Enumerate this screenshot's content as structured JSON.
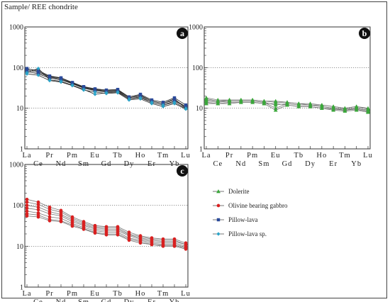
{
  "figure": {
    "ylabel": "Sample/ REE chondrite"
  },
  "colors": {
    "Dolerite": "#3aa83a",
    "Olivine bearing gabbro": "#d92020",
    "Pillow-lava": "#2a4a9a",
    "Pillow-lava sp.": "#2aa3c8"
  },
  "legend": [
    {
      "name": "Dolerite",
      "marker": "triangle"
    },
    {
      "name": "Olivine bearing gabbro",
      "marker": "circle"
    },
    {
      "name": "Pillow-lava",
      "marker": "square"
    },
    {
      "name": "Pillow-lava sp.",
      "marker": "diamond"
    }
  ],
  "chart_data": [
    {
      "type": "line",
      "panel_label": "a",
      "yscale": "log",
      "ylim": [
        1,
        1000
      ],
      "yticks": [
        "1000",
        "100",
        "10",
        "1"
      ],
      "x_upper": [
        "La",
        "Pr",
        "Pm",
        "Eu",
        "Tb",
        "Ho",
        "Tm",
        "Lu"
      ],
      "x_lower": [
        "Ce",
        "Nd",
        "Sm",
        "Gd",
        "Dy",
        "Er",
        "Yb"
      ],
      "categories": [
        "La",
        "Ce",
        "Pr",
        "Nd",
        "Pm",
        "Sm",
        "Eu",
        "Gd",
        "Tb",
        "Dy",
        "Ho",
        "Er",
        "Tm",
        "Yb",
        "Lu"
      ],
      "series": [
        {
          "name": "Pillow-lava",
          "values": [
            95,
            80,
            60,
            55,
            42,
            33,
            29,
            27,
            28,
            18,
            21,
            15,
            13,
            17,
            10
          ]
        },
        {
          "name": "Pillow-lava",
          "values": [
            88,
            75,
            58,
            52,
            41,
            32,
            28,
            26,
            27,
            18,
            20,
            15,
            13,
            16,
            11
          ]
        },
        {
          "name": "Pillow-lava",
          "values": [
            80,
            70,
            55,
            50,
            40,
            31,
            27,
            25,
            26,
            17,
            19,
            14,
            12,
            15,
            11
          ]
        },
        {
          "name": "Pillow-lava",
          "values": [
            92,
            85,
            62,
            56,
            43,
            34,
            30,
            28,
            29,
            19,
            22,
            16,
            14,
            18,
            12
          ]
        },
        {
          "name": "Pillow-lava sp.",
          "values": [
            75,
            95,
            50,
            46,
            37,
            29,
            22,
            24,
            25,
            17,
            18,
            14,
            12,
            14,
            10
          ]
        },
        {
          "name": "Pillow-lava sp.",
          "values": [
            70,
            65,
            48,
            44,
            36,
            28,
            25,
            23,
            24,
            16,
            17,
            13,
            11,
            13,
            9.5
          ]
        }
      ]
    },
    {
      "type": "line",
      "panel_label": "b",
      "yscale": "log",
      "ylim": [
        1,
        1000
      ],
      "yticks": [
        "1000",
        "100",
        "10",
        "1"
      ],
      "x_upper": [
        "La",
        "Pr",
        "Pm",
        "Eu",
        "Tb",
        "Ho",
        "Tm",
        "Lu"
      ],
      "x_lower": [
        "Ce",
        "Nd",
        "Sm",
        "Gd",
        "Dy",
        "Er",
        "Yb"
      ],
      "categories": [
        "La",
        "Ce",
        "Pr",
        "Nd",
        "Pm",
        "Sm",
        "Eu",
        "Gd",
        "Tb",
        "Dy",
        "Ho",
        "Er",
        "Tm",
        "Yb",
        "Lu"
      ],
      "series": [
        {
          "name": "Dolerite",
          "values": [
            18,
            16,
            16,
            16,
            16,
            15,
            14,
            14,
            13,
            13,
            12,
            11,
            10,
            11,
            10
          ]
        },
        {
          "name": "Dolerite",
          "values": [
            16,
            15,
            15,
            15,
            15,
            14,
            12,
            13,
            12,
            12,
            11,
            10,
            9.5,
            10,
            9
          ]
        },
        {
          "name": "Dolerite",
          "values": [
            15,
            14,
            15,
            15,
            15,
            14,
            10,
            13,
            12,
            12,
            11,
            10,
            9,
            10,
            8.5
          ]
        },
        {
          "name": "Dolerite",
          "values": [
            14,
            13,
            14,
            14,
            14,
            13,
            13,
            12,
            11,
            11,
            10,
            9.5,
            9,
            9.5,
            8
          ]
        },
        {
          "name": "Dolerite",
          "values": [
            17,
            15,
            16,
            16,
            16,
            15,
            15,
            14,
            13,
            12,
            12,
            11,
            10,
            11,
            9.5
          ]
        },
        {
          "name": "Dolerite",
          "values": [
            13,
            13,
            13,
            14,
            14,
            13,
            9,
            12,
            11,
            11,
            10,
            9,
            8.5,
            9,
            8
          ]
        }
      ]
    },
    {
      "type": "line",
      "panel_label": "c",
      "yscale": "log",
      "ylim": [
        1,
        1000
      ],
      "yticks": [
        "1000",
        "100",
        "10",
        "1"
      ],
      "x_upper": [
        "La",
        "Pr",
        "Pm",
        "Eu",
        "Tb",
        "Ho",
        "Tm",
        "Lu"
      ],
      "x_lower": [
        "Ce",
        "Nd",
        "Sm",
        "Gd",
        "Dy",
        "Er",
        "Yb"
      ],
      "categories": [
        "La",
        "Ce",
        "Pr",
        "Nd",
        "Pm",
        "Sm",
        "Eu",
        "Gd",
        "Tb",
        "Dy",
        "Ho",
        "Er",
        "Tm",
        "Yb",
        "Lu"
      ],
      "series": [
        {
          "name": "Olivine bearing gabbro",
          "values": [
            140,
            120,
            90,
            75,
            52,
            40,
            32,
            30,
            30,
            22,
            18,
            16,
            15,
            15,
            12
          ]
        },
        {
          "name": "Olivine bearing gabbro",
          "values": [
            120,
            105,
            80,
            68,
            48,
            37,
            30,
            28,
            28,
            20,
            17,
            15,
            14,
            14,
            11
          ]
        },
        {
          "name": "Olivine bearing gabbro",
          "values": [
            100,
            90,
            70,
            60,
            44,
            34,
            28,
            26,
            26,
            19,
            16,
            14,
            13,
            13,
            11
          ]
        },
        {
          "name": "Olivine bearing gabbro",
          "values": [
            85,
            78,
            62,
            55,
            40,
            32,
            26,
            24,
            24,
            18,
            15,
            13,
            12,
            12,
            10
          ]
        },
        {
          "name": "Olivine bearing gabbro",
          "values": [
            72,
            65,
            52,
            48,
            36,
            29,
            24,
            22,
            22,
            16,
            14,
            12,
            11,
            11,
            9.5
          ]
        },
        {
          "name": "Olivine bearing gabbro",
          "values": [
            62,
            58,
            45,
            42,
            33,
            27,
            22,
            20,
            20,
            15,
            13,
            11,
            10.5,
            10.5,
            9
          ]
        },
        {
          "name": "Olivine bearing gabbro",
          "values": [
            55,
            52,
            42,
            40,
            31,
            26,
            21,
            19,
            19,
            14,
            12,
            11,
            10,
            10,
            8.5
          ]
        }
      ]
    }
  ]
}
